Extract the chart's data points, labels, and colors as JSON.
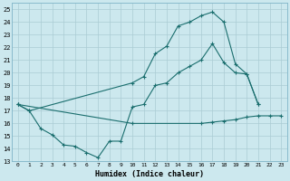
{
  "background_color": "#cce8ee",
  "line_color": "#1a6e6e",
  "grid_color": "#aaccd4",
  "xlabel": "Humidex (Indice chaleur)",
  "xlim": [
    -0.5,
    23.5
  ],
  "ylim": [
    13,
    25.5
  ],
  "yticks": [
    13,
    14,
    15,
    16,
    17,
    18,
    19,
    20,
    21,
    22,
    23,
    24,
    25
  ],
  "xticks": [
    0,
    1,
    2,
    3,
    4,
    5,
    6,
    7,
    8,
    9,
    10,
    11,
    12,
    13,
    14,
    15,
    16,
    17,
    18,
    19,
    20,
    21,
    22,
    23
  ],
  "curve1_x": [
    0,
    1,
    2,
    3,
    4,
    5,
    6,
    7,
    8,
    9,
    10,
    11,
    12,
    13,
    14,
    15,
    16,
    17,
    18,
    19,
    20,
    21
  ],
  "curve1_y": [
    17.5,
    17.0,
    15.6,
    15.1,
    14.3,
    14.2,
    13.7,
    13.3,
    14.6,
    14.6,
    17.3,
    17.5,
    19.0,
    19.2,
    20.0,
    20.5,
    21.0,
    22.3,
    20.8,
    20.0,
    19.9,
    17.5
  ],
  "curve2_x": [
    0,
    1,
    10,
    11,
    12,
    13,
    14,
    15,
    16,
    17,
    18,
    19,
    20,
    21
  ],
  "curve2_y": [
    17.5,
    17.0,
    19.2,
    19.7,
    21.5,
    22.1,
    23.7,
    24.0,
    24.5,
    24.8,
    24.0,
    20.7,
    19.9,
    17.5
  ],
  "curve3_x": [
    0,
    10,
    16,
    17,
    18,
    19,
    20,
    21,
    22,
    23
  ],
  "curve3_y": [
    17.5,
    16.0,
    16.0,
    16.1,
    16.2,
    16.3,
    16.5,
    16.6,
    16.6,
    16.6
  ]
}
